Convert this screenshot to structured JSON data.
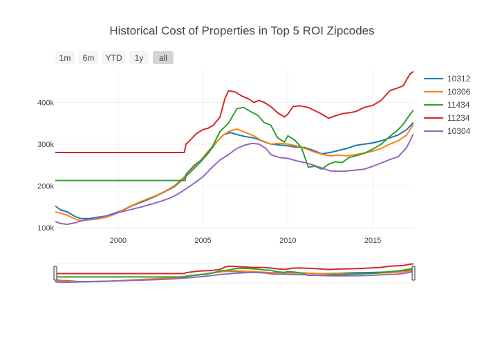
{
  "range_buttons": [
    {
      "label": "1m",
      "active": false
    },
    {
      "label": "6m",
      "active": false
    },
    {
      "label": "YTD",
      "active": false
    },
    {
      "label": "1y",
      "active": false
    },
    {
      "label": "all",
      "active": true
    }
  ],
  "chart_data": {
    "type": "line",
    "title": "Historical Cost of Properties in Top 5 ROI Zipcodes",
    "xlabel": "",
    "ylabel": "",
    "xlim": [
      1996.3,
      2017.4
    ],
    "ylim": [
      95000,
      480000
    ],
    "x_ticks": [
      {
        "value": 2000,
        "label": "2000"
      },
      {
        "value": 2005,
        "label": "2005"
      },
      {
        "value": 2010,
        "label": "2010"
      },
      {
        "value": 2015,
        "label": "2015"
      }
    ],
    "y_ticks": [
      {
        "value": 100000,
        "label": "100k"
      },
      {
        "value": 200000,
        "label": "200k"
      },
      {
        "value": 300000,
        "label": "300k"
      },
      {
        "value": 400000,
        "label": "400k"
      }
    ],
    "grid": true,
    "legend_position": "right",
    "range_slider": true,
    "series": [
      {
        "name": "10312",
        "color": "#1f77b4",
        "points": [
          [
            1996.3,
            152000
          ],
          [
            1996.6,
            143000
          ],
          [
            1997.0,
            138000
          ],
          [
            1997.5,
            126000
          ],
          [
            1997.8,
            122000
          ],
          [
            1998.3,
            122000
          ],
          [
            1998.8,
            125000
          ],
          [
            1999.3,
            128000
          ],
          [
            1999.8,
            135000
          ],
          [
            2000.3,
            142000
          ],
          [
            2000.8,
            152000
          ],
          [
            2001.3,
            160000
          ],
          [
            2001.8,
            168000
          ],
          [
            2002.3,
            177000
          ],
          [
            2002.8,
            187000
          ],
          [
            2003.3,
            198000
          ],
          [
            2003.8,
            215000
          ],
          [
            2004.3,
            235000
          ],
          [
            2004.8,
            255000
          ],
          [
            2005.3,
            278000
          ],
          [
            2005.8,
            305000
          ],
          [
            2006.2,
            322000
          ],
          [
            2006.6,
            328000
          ],
          [
            2007.0,
            323000
          ],
          [
            2007.5,
            318000
          ],
          [
            2008.0,
            315000
          ],
          [
            2008.5,
            308000
          ],
          [
            2009.0,
            300000
          ],
          [
            2009.5,
            298000
          ],
          [
            2010.0,
            296000
          ],
          [
            2010.5,
            293000
          ],
          [
            2011.0,
            292000
          ],
          [
            2011.5,
            285000
          ],
          [
            2012.0,
            277000
          ],
          [
            2012.5,
            280000
          ],
          [
            2013.0,
            285000
          ],
          [
            2013.5,
            290000
          ],
          [
            2014.0,
            297000
          ],
          [
            2014.5,
            300000
          ],
          [
            2015.0,
            303000
          ],
          [
            2015.5,
            308000
          ],
          [
            2016.0,
            315000
          ],
          [
            2016.5,
            322000
          ],
          [
            2017.0,
            335000
          ],
          [
            2017.4,
            352000
          ]
        ]
      },
      {
        "name": "10306",
        "color": "#ff7f0e",
        "points": [
          [
            1996.3,
            138000
          ],
          [
            1996.6,
            135000
          ],
          [
            1997.0,
            130000
          ],
          [
            1997.5,
            120000
          ],
          [
            1997.8,
            117000
          ],
          [
            1998.3,
            119000
          ],
          [
            1998.8,
            121000
          ],
          [
            1999.3,
            125000
          ],
          [
            1999.8,
            132000
          ],
          [
            2000.3,
            143000
          ],
          [
            2000.8,
            153000
          ],
          [
            2001.3,
            162000
          ],
          [
            2001.8,
            170000
          ],
          [
            2002.3,
            178000
          ],
          [
            2002.8,
            188000
          ],
          [
            2003.3,
            200000
          ],
          [
            2003.8,
            218000
          ],
          [
            2004.3,
            238000
          ],
          [
            2004.8,
            258000
          ],
          [
            2005.3,
            283000
          ],
          [
            2005.8,
            305000
          ],
          [
            2006.2,
            322000
          ],
          [
            2006.6,
            332000
          ],
          [
            2007.0,
            336000
          ],
          [
            2007.5,
            328000
          ],
          [
            2008.0,
            320000
          ],
          [
            2008.5,
            307000
          ],
          [
            2009.0,
            300000
          ],
          [
            2009.5,
            302000
          ],
          [
            2010.0,
            300000
          ],
          [
            2010.5,
            296000
          ],
          [
            2011.0,
            290000
          ],
          [
            2011.5,
            282000
          ],
          [
            2012.0,
            276000
          ],
          [
            2012.5,
            272000
          ],
          [
            2013.0,
            274000
          ],
          [
            2013.5,
            272000
          ],
          [
            2014.0,
            275000
          ],
          [
            2014.5,
            279000
          ],
          [
            2015.0,
            283000
          ],
          [
            2015.5,
            290000
          ],
          [
            2016.0,
            300000
          ],
          [
            2016.5,
            308000
          ],
          [
            2017.0,
            322000
          ],
          [
            2017.4,
            348000
          ]
        ]
      },
      {
        "name": "11434",
        "color": "#2ca02c",
        "points": [
          [
            1996.3,
            213000
          ],
          [
            1997.0,
            213000
          ],
          [
            1998.0,
            213000
          ],
          [
            1999.0,
            213000
          ],
          [
            2000.0,
            213000
          ],
          [
            2001.0,
            213000
          ],
          [
            2002.0,
            213000
          ],
          [
            2003.0,
            213000
          ],
          [
            2003.95,
            213000
          ],
          [
            2004.0,
            228000
          ],
          [
            2004.5,
            250000
          ],
          [
            2005.0,
            265000
          ],
          [
            2005.5,
            290000
          ],
          [
            2006.0,
            330000
          ],
          [
            2006.5,
            350000
          ],
          [
            2007.0,
            385000
          ],
          [
            2007.4,
            388000
          ],
          [
            2007.8,
            378000
          ],
          [
            2008.2,
            370000
          ],
          [
            2008.6,
            352000
          ],
          [
            2009.0,
            345000
          ],
          [
            2009.4,
            315000
          ],
          [
            2009.8,
            305000
          ],
          [
            2010.0,
            320000
          ],
          [
            2010.4,
            310000
          ],
          [
            2010.8,
            292000
          ],
          [
            2011.2,
            245000
          ],
          [
            2011.6,
            247000
          ],
          [
            2012.0,
            240000
          ],
          [
            2012.4,
            252000
          ],
          [
            2012.8,
            258000
          ],
          [
            2013.2,
            256000
          ],
          [
            2013.6,
            268000
          ],
          [
            2014.0,
            272000
          ],
          [
            2014.5,
            278000
          ],
          [
            2015.0,
            288000
          ],
          [
            2015.5,
            300000
          ],
          [
            2016.0,
            318000
          ],
          [
            2016.5,
            335000
          ],
          [
            2016.8,
            348000
          ],
          [
            2017.0,
            360000
          ],
          [
            2017.4,
            382000
          ]
        ]
      },
      {
        "name": "11234",
        "color": "#d62728",
        "points": [
          [
            1996.3,
            280000
          ],
          [
            1997.0,
            280000
          ],
          [
            1998.0,
            280000
          ],
          [
            1999.0,
            280000
          ],
          [
            2000.0,
            280000
          ],
          [
            2001.0,
            280000
          ],
          [
            2002.0,
            280000
          ],
          [
            2003.0,
            280000
          ],
          [
            2003.9,
            280000
          ],
          [
            2004.0,
            300000
          ],
          [
            2004.3,
            312000
          ],
          [
            2004.6,
            325000
          ],
          [
            2005.0,
            335000
          ],
          [
            2005.3,
            338000
          ],
          [
            2005.6,
            345000
          ],
          [
            2006.0,
            365000
          ],
          [
            2006.3,
            410000
          ],
          [
            2006.5,
            428000
          ],
          [
            2006.9,
            425000
          ],
          [
            2007.3,
            415000
          ],
          [
            2007.7,
            408000
          ],
          [
            2008.0,
            400000
          ],
          [
            2008.3,
            405000
          ],
          [
            2008.6,
            400000
          ],
          [
            2009.0,
            390000
          ],
          [
            2009.4,
            375000
          ],
          [
            2009.8,
            365000
          ],
          [
            2010.0,
            372000
          ],
          [
            2010.3,
            390000
          ],
          [
            2010.7,
            392000
          ],
          [
            2011.2,
            388000
          ],
          [
            2011.6,
            380000
          ],
          [
            2012.0,
            372000
          ],
          [
            2012.4,
            362000
          ],
          [
            2012.8,
            368000
          ],
          [
            2013.2,
            373000
          ],
          [
            2013.6,
            375000
          ],
          [
            2014.0,
            378000
          ],
          [
            2014.5,
            388000
          ],
          [
            2015.0,
            393000
          ],
          [
            2015.5,
            405000
          ],
          [
            2016.0,
            428000
          ],
          [
            2016.5,
            435000
          ],
          [
            2016.8,
            440000
          ],
          [
            2017.0,
            455000
          ],
          [
            2017.2,
            468000
          ],
          [
            2017.4,
            474000
          ]
        ]
      },
      {
        "name": "10304",
        "color": "#9467bd",
        "points": [
          [
            1996.3,
            115000
          ],
          [
            1996.6,
            110000
          ],
          [
            1997.0,
            108000
          ],
          [
            1997.5,
            112000
          ],
          [
            1998.0,
            118000
          ],
          [
            1998.5,
            121000
          ],
          [
            1999.0,
            125000
          ],
          [
            1999.5,
            130000
          ],
          [
            2000.0,
            136000
          ],
          [
            2000.5,
            141000
          ],
          [
            2001.0,
            146000
          ],
          [
            2001.5,
            151000
          ],
          [
            2002.0,
            157000
          ],
          [
            2002.5,
            163000
          ],
          [
            2003.0,
            170000
          ],
          [
            2003.5,
            180000
          ],
          [
            2004.0,
            193000
          ],
          [
            2004.5,
            207000
          ],
          [
            2005.0,
            222000
          ],
          [
            2005.5,
            243000
          ],
          [
            2006.0,
            262000
          ],
          [
            2006.5,
            275000
          ],
          [
            2007.0,
            290000
          ],
          [
            2007.5,
            298000
          ],
          [
            2007.9,
            302000
          ],
          [
            2008.3,
            300000
          ],
          [
            2008.7,
            290000
          ],
          [
            2009.0,
            275000
          ],
          [
            2009.5,
            268000
          ],
          [
            2010.0,
            266000
          ],
          [
            2010.5,
            260000
          ],
          [
            2011.0,
            256000
          ],
          [
            2011.5,
            250000
          ],
          [
            2012.0,
            243000
          ],
          [
            2012.5,
            236000
          ],
          [
            2013.0,
            235000
          ],
          [
            2013.5,
            236000
          ],
          [
            2014.0,
            238000
          ],
          [
            2014.5,
            240000
          ],
          [
            2015.0,
            247000
          ],
          [
            2015.5,
            255000
          ],
          [
            2016.0,
            263000
          ],
          [
            2016.5,
            270000
          ],
          [
            2017.0,
            292000
          ],
          [
            2017.4,
            325000
          ]
        ]
      }
    ]
  }
}
